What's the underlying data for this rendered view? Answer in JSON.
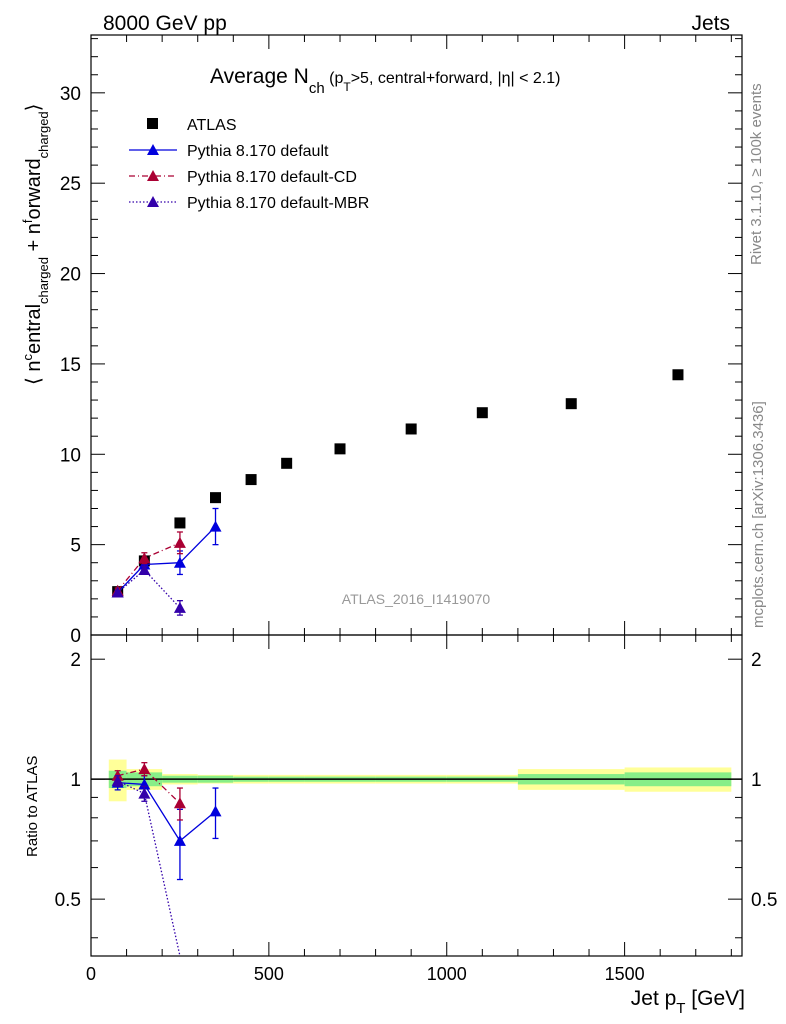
{
  "header": {
    "left": "8000 GeV pp",
    "right": "Jets"
  },
  "title": {
    "main": "Average N",
    "main_sub": "ch",
    "detail_open": " (p",
    "detail_sub": "T",
    "detail_rest": ">5, central+forward, |η| < 2.1)"
  },
  "side_labels": {
    "rivet": "Rivet 3.1.10, ≥ 100k events",
    "mcplots": "mcplots.cern.ch [arXiv:1306.3436]"
  },
  "watermark": "ATLAS_2016_I1419070",
  "axes": {
    "top_ylabel": "⟨ n^central_charged + n^forward_charged ⟩",
    "bottom_ylabel": "Ratio to ATLAS",
    "xlabel": "Jet p",
    "xlabel_sub": "T",
    "xlabel_unit": " [GeV]",
    "top_yticks": [
      "0",
      "5",
      "10",
      "15",
      "20",
      "25",
      "30"
    ],
    "bottom_yticks": [
      "0.5",
      "1",
      "2"
    ],
    "xticks": [
      "0",
      "500",
      "1000",
      "1500"
    ]
  },
  "legend": {
    "atlas": "ATLAS",
    "default": "Pythia 8.170 default",
    "cd": "Pythia 8.170 default-CD",
    "mbr": "Pythia 8.170 default-MBR"
  },
  "colors": {
    "atlas": "#000000",
    "default": "#0000dd",
    "cd": "#aa0033",
    "mbr": "#3300aa",
    "band_inner": "#88ee88",
    "band_outer": "#ffff99",
    "watermark": "#999999",
    "side_text": "#888888"
  },
  "chart_data": {
    "type": "scatter",
    "xlim": [
      0,
      1830
    ],
    "top_ylim": [
      0,
      33.2
    ],
    "ratio_ylim": [
      0.36,
      2.3
    ],
    "ratio_log_scale": true,
    "atlas": {
      "x": [
        75,
        150,
        250,
        350,
        450,
        550,
        700,
        900,
        1100,
        1350,
        1650
      ],
      "y": [
        2.4,
        4.1,
        6.2,
        7.6,
        8.6,
        9.5,
        10.3,
        11.4,
        12.3,
        12.8,
        14.4
      ],
      "x_edges": [
        50,
        100,
        200,
        300,
        400,
        500,
        600,
        800,
        1000,
        1200,
        1500,
        1800
      ],
      "ratio_band_inner": [
        0.05,
        0.04,
        0.02,
        0.02,
        0.015,
        0.015,
        0.015,
        0.015,
        0.015,
        0.03,
        0.04
      ],
      "ratio_band_outer": [
        0.12,
        0.06,
        0.03,
        0.025,
        0.025,
        0.025,
        0.025,
        0.025,
        0.025,
        0.06,
        0.07
      ]
    },
    "series": [
      {
        "name": "Pythia 8.170 default",
        "key": "default",
        "x": [
          75,
          150,
          250,
          350
        ],
        "y": [
          2.35,
          3.9,
          4.0,
          6.0
        ],
        "yerr": [
          0.15,
          0.3,
          0.65,
          1.0
        ],
        "ratio": [
          0.98,
          0.97,
          0.7,
          0.83
        ],
        "ratio_err": [
          0.04,
          0.05,
          0.14,
          0.12
        ]
      },
      {
        "name": "Pythia 8.170 default-CD",
        "key": "cd",
        "x": [
          75,
          150,
          250
        ],
        "y": [
          2.45,
          4.25,
          5.1
        ],
        "yerr": [
          0.15,
          0.3,
          0.6
        ],
        "ratio": [
          1.02,
          1.06,
          0.87
        ],
        "ratio_err": [
          0.03,
          0.04,
          0.08
        ]
      },
      {
        "name": "Pythia 8.170 default-MBR",
        "key": "mbr",
        "x": [
          75,
          150,
          250
        ],
        "y": [
          2.35,
          3.6,
          1.5
        ],
        "yerr": [
          0.1,
          0.2,
          0.4
        ],
        "ratio": [
          0.99,
          0.92,
          0.24
        ],
        "ratio_err": [
          0.03,
          0.04,
          0.1
        ]
      }
    ]
  }
}
